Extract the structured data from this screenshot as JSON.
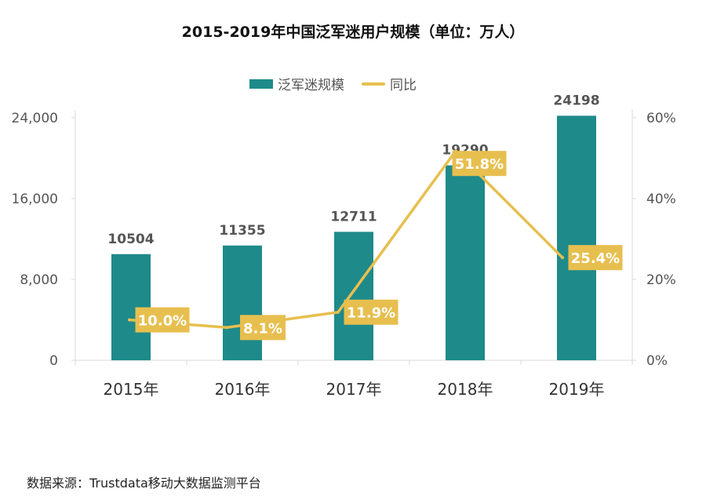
{
  "chart_data": {
    "type": "bar",
    "title": "2015-2019年中国泛军迷用户规模（单位：万人）",
    "categories": [
      "2015年",
      "2016年",
      "2017年",
      "2018年",
      "2019年"
    ],
    "series": [
      {
        "name": "泛军迷规模",
        "type": "bar",
        "axis": "left",
        "values": [
          10504,
          11355,
          12711,
          19290,
          24198
        ],
        "labels": [
          "10504",
          "11355",
          "12711",
          "19290",
          "24198"
        ]
      },
      {
        "name": "同比",
        "type": "line",
        "axis": "right",
        "values": [
          10.0,
          8.1,
          11.9,
          51.8,
          25.4
        ],
        "labels": [
          "10.0%",
          "8.1%",
          "11.9%",
          "51.8%",
          "25.4%"
        ]
      }
    ],
    "y_left": {
      "ylim": [
        0,
        24000
      ],
      "ticks": [
        "0",
        "8,000",
        "16,000",
        "24,000"
      ],
      "tick_values": [
        0,
        8000,
        16000,
        24000
      ]
    },
    "y_right": {
      "ylim": [
        0,
        60
      ],
      "ticks": [
        "0%",
        "20%",
        "40%",
        "60%"
      ],
      "tick_values": [
        0,
        20,
        40,
        60
      ]
    },
    "legend_position": "top-center",
    "colors": {
      "bar": "#1e8a8a",
      "line": "#e7bf4f",
      "axis_text": "#555555",
      "value_label": "#555555"
    }
  },
  "source": "数据来源：Trustdata移动大数据监测平台"
}
